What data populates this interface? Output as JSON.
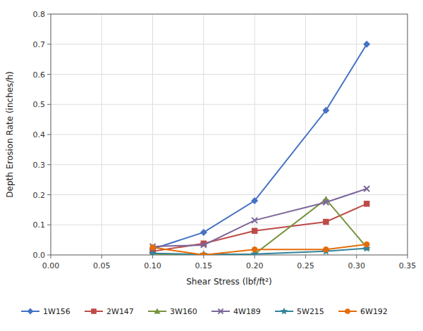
{
  "chart_data": {
    "type": "line",
    "xlabel": "Shear Stress (lbf/ft²)",
    "ylabel": "Depth Erosion Rate (inches/h)",
    "xlim": [
      0.0,
      0.35
    ],
    "ylim": [
      0.0,
      0.8
    ],
    "xticks": [
      {
        "value": 0.0,
        "label": "0.00"
      },
      0.05,
      {
        "value": 0.1,
        "label": "0.10"
      },
      0.15,
      {
        "value": 0.2,
        "label": "0.20"
      },
      0.25,
      {
        "value": 0.3,
        "label": "0.30"
      },
      0.35
    ],
    "yticks": [
      {
        "value": 0.0,
        "label": "0.0"
      },
      0.1,
      0.2,
      0.3,
      0.4,
      0.5,
      0.6,
      0.7,
      0.8
    ],
    "grid": true,
    "legend": "bottom",
    "x": [
      0.1,
      0.15,
      0.2,
      0.27,
      0.31
    ],
    "series": [
      {
        "name": "1W156",
        "color": "#4472C4",
        "marker": "diamond",
        "values": [
          0.02,
          0.075,
          0.18,
          0.48,
          0.7
        ]
      },
      {
        "name": "2W147",
        "color": "#BE4B48",
        "marker": "square",
        "values": [
          0.012,
          0.038,
          0.08,
          0.11,
          0.17
        ]
      },
      {
        "name": "3W160",
        "color": "#77933C",
        "marker": "triangle",
        "values": [
          0.003,
          0.0,
          0.003,
          0.185,
          0.025
        ]
      },
      {
        "name": "4W189",
        "color": "#7B6699",
        "marker": "x",
        "values": [
          0.028,
          0.033,
          0.115,
          0.175,
          0.22
        ]
      },
      {
        "name": "5W215",
        "color": "#31849B",
        "marker": "star",
        "values": [
          0.005,
          0.002,
          0.003,
          0.012,
          0.022
        ]
      },
      {
        "name": "6W192",
        "color": "#E36C09",
        "marker": "circle",
        "values": [
          0.025,
          0.0,
          0.018,
          0.018,
          0.035
        ]
      }
    ]
  }
}
